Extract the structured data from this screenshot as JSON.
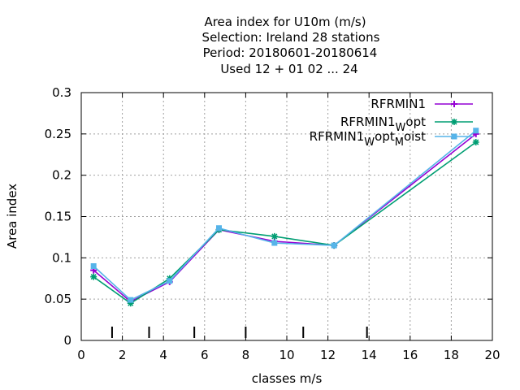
{
  "chart_data": {
    "type": "line",
    "title_lines": [
      "Area index  for U10m (m/s)",
      "Selection: Ireland     28 stations",
      "Period: 20180601-20180614",
      "Used  12 + 01 02 ... 24"
    ],
    "xlabel": "classes m/s",
    "ylabel": "Area index",
    "xlim": [
      0,
      20
    ],
    "ylim": [
      0,
      0.3
    ],
    "xticks": [
      0,
      2,
      4,
      6,
      8,
      10,
      12,
      14,
      16,
      18,
      20
    ],
    "yticks": [
      0,
      0.05,
      0.1,
      0.15,
      0.2,
      0.25,
      0.3
    ],
    "ytick_labels": [
      "0",
      "0.05",
      "0.1",
      "0.15",
      "0.2",
      "0.25",
      "0.3"
    ],
    "grid": true,
    "legend_position": "top-right",
    "class_boundaries": [
      1.5,
      3.3,
      5.5,
      8.0,
      10.8,
      13.9
    ],
    "series": [
      {
        "name": "RFRMIN1",
        "legend_parts": [
          "RFRMIN1"
        ],
        "color": "#9400d3",
        "marker": "plus",
        "x": [
          0.6,
          2.4,
          4.3,
          6.7,
          9.4,
          12.3,
          19.2
        ],
        "y": [
          0.085,
          0.047,
          0.071,
          0.134,
          0.12,
          0.115,
          0.25
        ]
      },
      {
        "name": "RFRMIN1_W opt",
        "legend_parts": [
          "RFRMIN1",
          "W",
          "opt"
        ],
        "color": "#009e73",
        "marker": "star",
        "x": [
          0.6,
          2.4,
          4.3,
          6.7,
          9.4,
          12.3,
          19.2
        ],
        "y": [
          0.077,
          0.045,
          0.075,
          0.134,
          0.126,
          0.115,
          0.24
        ]
      },
      {
        "name": "RFRMIN1_W opt_M oist",
        "legend_parts": [
          "RFRMIN1",
          "W",
          "opt",
          "M",
          "oist"
        ],
        "color": "#56b4e9",
        "marker": "box",
        "x": [
          0.6,
          2.4,
          4.3,
          6.7,
          9.4,
          12.3,
          19.2
        ],
        "y": [
          0.09,
          0.049,
          0.072,
          0.136,
          0.118,
          0.115,
          0.254
        ]
      }
    ]
  }
}
